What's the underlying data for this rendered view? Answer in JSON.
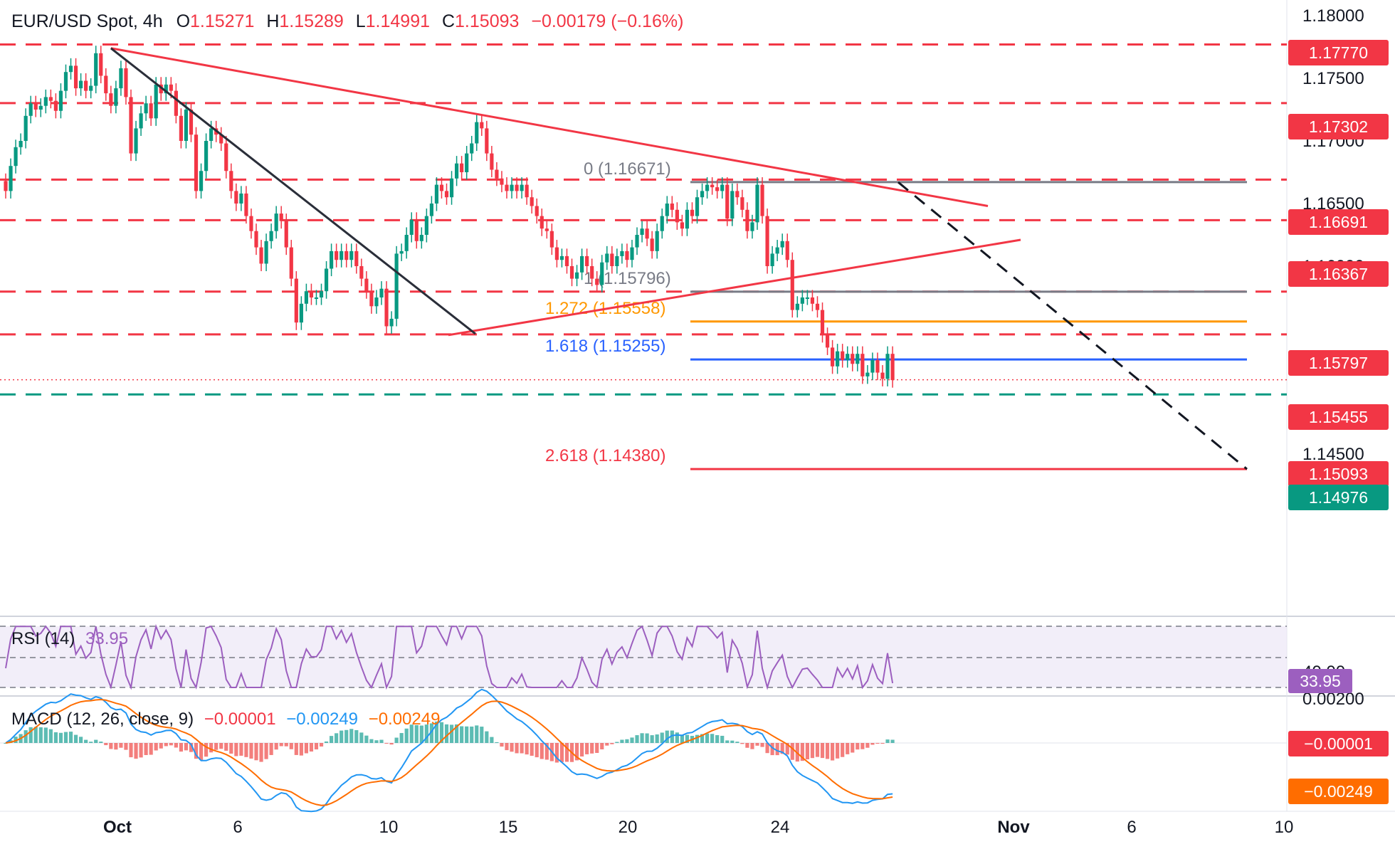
{
  "header": {
    "symbol": "EUR/USD Spot",
    "interval": "4h",
    "open_label": "O",
    "open": "1.15271",
    "high_label": "H",
    "high": "1.15289",
    "low_label": "L",
    "low": "1.14991",
    "close_label": "C",
    "close": "1.15093",
    "change": "−0.00179 (−0.16%)"
  },
  "colors": {
    "up": "#089981",
    "down": "#f23645",
    "line_red": "#f23645",
    "fib_orange": "#ff9800",
    "fib_blue": "#2962ff",
    "fib_grey": "#787b86",
    "rsi": "#9c5fbf",
    "macd": "#2196f3",
    "signal": "#ff6d00"
  },
  "chart_data": {
    "type": "candlestick",
    "title": "EUR/USD Spot, 4h",
    "y_axis": {
      "ticks": [
        "1.18000",
        "1.17500",
        "1.17000",
        "1.16500",
        "1.16000",
        "1.14500"
      ],
      "range": [
        1.1415,
        1.1805
      ]
    },
    "x_axis": {
      "ticks": [
        "Oct",
        "6",
        "10",
        "15",
        "20",
        "24",
        "Nov",
        "6",
        "10"
      ]
    },
    "closes": [
      1.166,
      1.168,
      1.1695,
      1.17,
      1.172,
      1.173,
      1.1725,
      1.1728,
      1.1735,
      1.1732,
      1.1724,
      1.174,
      1.1755,
      1.176,
      1.1742,
      1.1748,
      1.174,
      1.1744,
      1.177,
      1.1752,
      1.1738,
      1.1728,
      1.1742,
      1.1758,
      1.1735,
      1.169,
      1.171,
      1.1722,
      1.173,
      1.1718,
      1.1745,
      1.1738,
      1.1745,
      1.174,
      1.172,
      1.17,
      1.1725,
      1.1705,
      1.166,
      1.1676,
      1.17,
      1.171,
      1.1705,
      1.1698,
      1.1676,
      1.166,
      1.165,
      1.1658,
      1.164,
      1.1628,
      1.1615,
      1.1602,
      1.162,
      1.1628,
      1.1642,
      1.1636,
      1.1615,
      1.159,
      1.1555,
      1.157,
      1.158,
      1.1575,
      1.1575,
      1.158,
      1.1598,
      1.1612,
      1.1605,
      1.1612,
      1.1605,
      1.1612,
      1.16,
      1.159,
      1.158,
      1.1568,
      1.1575,
      1.1582,
      1.1552,
      1.1558,
      1.161,
      1.1612,
      1.1625,
      1.1637,
      1.162,
      1.1625,
      1.164,
      1.165,
      1.1665,
      1.166,
      1.1655,
      1.167,
      1.1682,
      1.1675,
      1.169,
      1.1698,
      1.1715,
      1.171,
      1.169,
      1.1677,
      1.167,
      1.1665,
      1.166,
      1.1665,
      1.166,
      1.1665,
      1.1655,
      1.1648,
      1.164,
      1.163,
      1.1628,
      1.1615,
      1.1605,
      1.1608,
      1.16,
      1.159,
      1.1595,
      1.1608,
      1.16,
      1.159,
      1.1585,
      1.1603,
      1.161,
      1.16,
      1.1608,
      1.1612,
      1.1605,
      1.1615,
      1.1625,
      1.163,
      1.1622,
      1.1612,
      1.1628,
      1.164,
      1.165,
      1.1645,
      1.1635,
      1.163,
      1.1645,
      1.164,
      1.1655,
      1.166,
      1.1665,
      1.1663,
      1.166,
      1.1665,
      1.1638,
      1.166,
      1.1655,
      1.1645,
      1.1628,
      1.1635,
      1.1665,
      1.164,
      1.16,
      1.161,
      1.1615,
      1.162,
      1.1605,
      1.1565,
      1.157,
      1.1575,
      1.1575,
      1.157,
      1.1565,
      1.1545,
      1.1535,
      1.152,
      1.1532,
      1.1525,
      1.153,
      1.1522,
      1.153,
      1.1512,
      1.1515,
      1.1525,
      1.1515,
      1.151,
      1.153,
      1.1509
    ],
    "horizontal_levels": [
      "1.17770",
      "1.17302",
      "1.16691",
      "1.16367",
      "1.15797",
      "1.15455",
      "1.14976"
    ],
    "last_price": "1.15093",
    "fibonacci": [
      {
        "label": "0 (1.16671)"
      },
      {
        "label": "1 (1.15796)"
      },
      {
        "label": "1.272 (1.15558)"
      },
      {
        "label": "1.618 (1.15255)"
      },
      {
        "label": "2.618 (1.14380)"
      }
    ],
    "rsi": {
      "label": "RSI (14)",
      "value": "33.95",
      "partial_tick": "40.00"
    },
    "macd": {
      "label": "MACD (12, 26, close, 9)",
      "hist": "−0.00001",
      "macd": "−0.00249",
      "signal": "−0.00249",
      "axis_tick": "0.00200",
      "tag_hist": "−0.00001",
      "tag_signal": "−0.00249"
    }
  }
}
